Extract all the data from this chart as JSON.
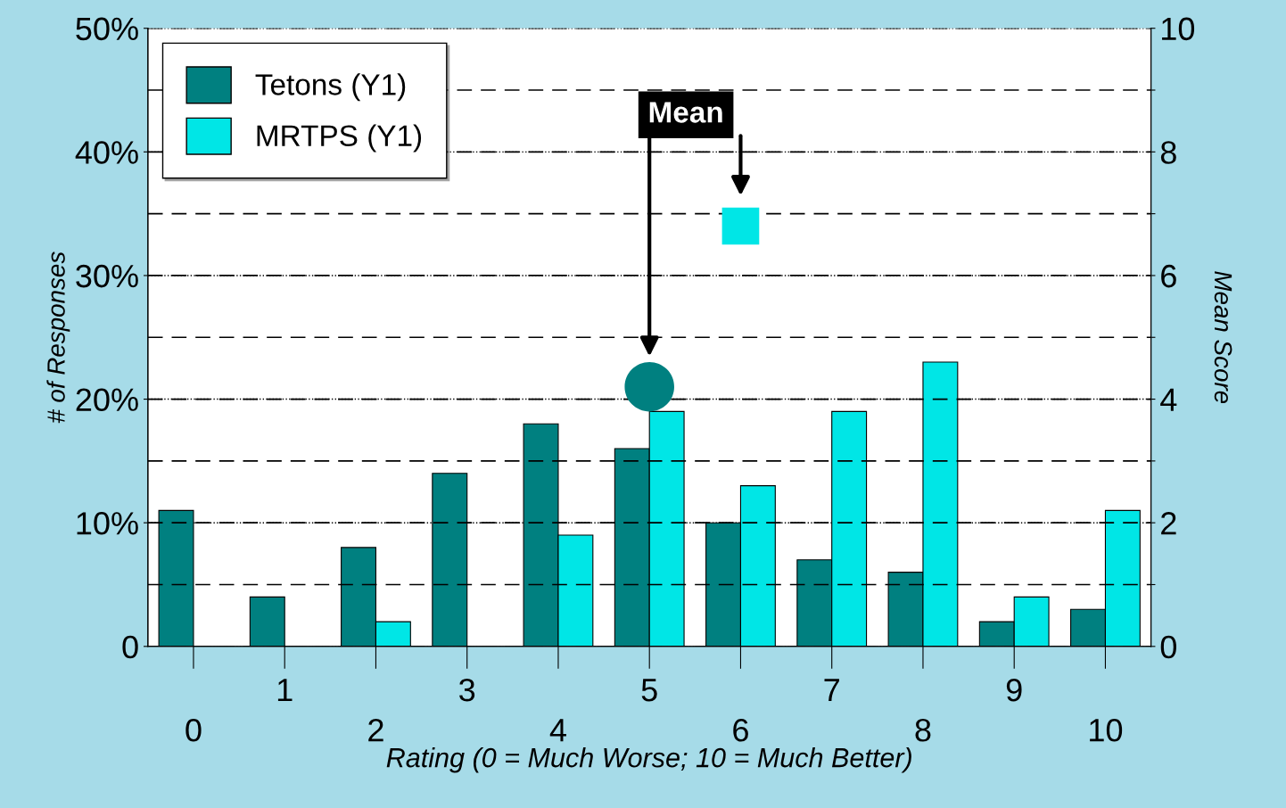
{
  "chart_data": {
    "type": "bar",
    "categories": [
      "0",
      "1",
      "2",
      "3",
      "4",
      "5",
      "6",
      "7",
      "8",
      "9",
      "10"
    ],
    "series": [
      {
        "name": "Tetons (Y1)",
        "color": "#008080",
        "values": [
          11,
          4,
          8,
          14,
          18,
          16,
          10,
          7,
          6,
          2,
          3
        ]
      },
      {
        "name": "MRTPS (Y1)",
        "color": "#00e6e6",
        "values": [
          0,
          0,
          2,
          0,
          9,
          19,
          13,
          19,
          23,
          4,
          11
        ]
      },
      {
        "type": "scatter",
        "axis": "y2",
        "marker": "circle",
        "color": "#008080",
        "x": [
          "5"
        ],
        "values": [
          4.2
        ]
      },
      {
        "type": "scatter",
        "axis": "y2",
        "marker": "square",
        "color": "#00e6e6",
        "x": [
          "6"
        ],
        "values": [
          6.8
        ]
      }
    ],
    "xlabel": "Rating (0 = Much Worse; 10 = Much Better)",
    "ylabel": "# of Responses",
    "y2label": "Mean Score",
    "ylim": [
      0,
      50
    ],
    "yticks": [
      {
        "value": 0,
        "label": "0"
      },
      {
        "value": 10,
        "label": "10%"
      },
      {
        "value": 20,
        "label": "20%"
      },
      {
        "value": 30,
        "label": "30%"
      },
      {
        "value": 40,
        "label": "40%"
      },
      {
        "value": 50,
        "label": "50%"
      }
    ],
    "y2lim": [
      0,
      10
    ],
    "y2ticks": [
      0,
      {
        "value": 1,
        "label": null
      },
      2,
      {
        "value": 3,
        "label": null
      },
      4,
      {
        "value": 5,
        "label": null
      },
      6,
      {
        "value": 7,
        "label": null
      },
      8,
      {
        "value": 9,
        "label": null
      },
      10
    ],
    "annotations": [
      "Mean"
    ],
    "grid": true,
    "legend": "top left"
  }
}
